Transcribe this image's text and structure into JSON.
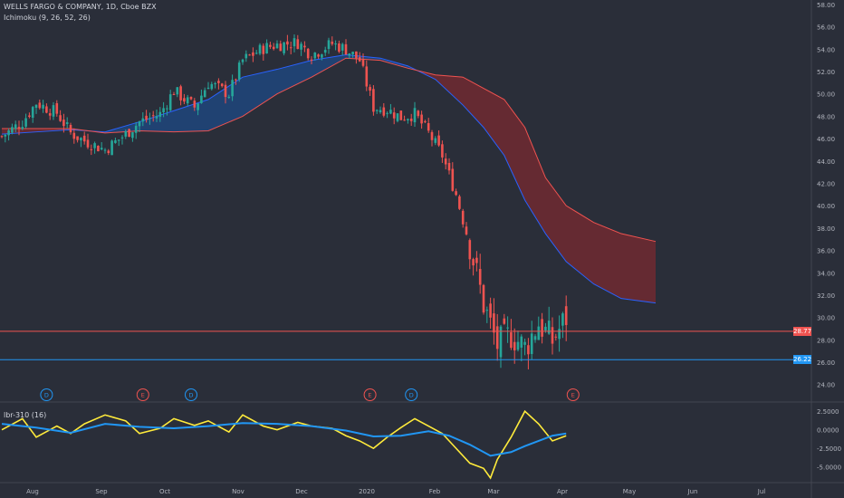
{
  "header": {
    "symbol_line": "WELLS FARGO & COMPANY, 1D, Cboe BZX",
    "indicator_line": "Ichimoku (9, 26, 52, 26)",
    "sub_indicator": "lbr-310 (16)"
  },
  "colors": {
    "background": "#2a2e39",
    "up_candle": "#26a69a",
    "down_candle": "#ef5350",
    "cloud_bull": "#1e4a86",
    "cloud_bear": "#7a2a30",
    "leading_a": "#2962ff",
    "leading_b": "#ef5350",
    "osc_fast": "#ffeb3b",
    "osc_slow": "#2196f3",
    "line_red": "#ef5350",
    "line_blue": "#2196f3"
  },
  "chart_data": [
    {
      "type": "candlestick",
      "title": "WELLS FARGO & COMPANY, 1D, Cboe BZX",
      "x_ticks": [
        "Aug",
        "Sep",
        "Oct",
        "Nov",
        "Dec",
        "2020",
        "Feb",
        "Mar",
        "Apr",
        "May",
        "Jun",
        "Jul"
      ],
      "y_ticks": [
        "58.00",
        "56.00",
        "54.00",
        "52.00",
        "50.00",
        "48.00",
        "46.00",
        "44.00",
        "42.00",
        "40.00",
        "38.00",
        "36.00",
        "34.00",
        "32.00",
        "30.00",
        "28.00",
        "26.00",
        "24.00"
      ],
      "ylim": [
        22.6,
        58.4
      ],
      "price_lines": [
        {
          "value": 28.77,
          "label": "28.77",
          "color": "#ef5350"
        },
        {
          "value": 26.22,
          "label": "26.22",
          "color": "#2196f3"
        }
      ],
      "close_path": [
        [
          0,
          46.2
        ],
        [
          6,
          47.5
        ],
        [
          10,
          49.2
        ],
        [
          16,
          48.3
        ],
        [
          20,
          46.5
        ],
        [
          24,
          45.8
        ],
        [
          30,
          45.0
        ],
        [
          36,
          46.4
        ],
        [
          40,
          47.5
        ],
        [
          46,
          48.2
        ],
        [
          50,
          50.3
        ],
        [
          56,
          48.8
        ],
        [
          60,
          51.0
        ],
        [
          66,
          50.0
        ],
        [
          70,
          53.0
        ],
        [
          76,
          54.1
        ],
        [
          80,
          54.4
        ],
        [
          86,
          54.6
        ],
        [
          90,
          53.5
        ],
        [
          96,
          54.5
        ],
        [
          100,
          54.0
        ],
        [
          104,
          53.0
        ],
        [
          108,
          48.8
        ],
        [
          112,
          48.6
        ],
        [
          116,
          47.9
        ],
        [
          120,
          48.2
        ],
        [
          124,
          46.5
        ],
        [
          128,
          44.5
        ],
        [
          132,
          41.0
        ],
        [
          136,
          36.5
        ],
        [
          140,
          31.2
        ],
        [
          144,
          27.5
        ],
        [
          148,
          28.5
        ],
        [
          152,
          27.3
        ],
        [
          156,
          29.5
        ],
        [
          160,
          27.9
        ],
        [
          164,
          30.0
        ]
      ],
      "cloud": {
        "x": [
          0,
          10,
          20,
          30,
          40,
          50,
          60,
          70,
          80,
          90,
          100,
          110,
          118,
          126,
          134,
          140,
          146,
          152,
          158,
          164,
          172,
          180,
          190
        ],
        "span_a": [
          46.4,
          46.6,
          46.8,
          46.6,
          47.5,
          48.5,
          49.5,
          51.5,
          52.2,
          53.0,
          53.5,
          53.2,
          52.5,
          51.3,
          49.0,
          47.0,
          44.5,
          40.5,
          37.5,
          35.0,
          33.0,
          31.7,
          31.3
        ],
        "span_b": [
          46.9,
          46.9,
          46.9,
          46.5,
          46.7,
          46.6,
          46.7,
          48.0,
          50.0,
          51.5,
          53.2,
          53.0,
          52.3,
          51.7,
          51.5,
          50.5,
          49.5,
          47.0,
          42.5,
          40.0,
          38.5,
          37.5,
          36.8
        ]
      },
      "events": [
        {
          "x": 13,
          "kind": "D"
        },
        {
          "x": 41,
          "kind": "E"
        },
        {
          "x": 55,
          "kind": "D"
        },
        {
          "x": 107,
          "kind": "E"
        },
        {
          "x": 119,
          "kind": "D"
        },
        {
          "x": 166,
          "kind": "E"
        }
      ]
    },
    {
      "type": "line",
      "title": "lbr-310 (16)",
      "y_ticks": [
        "2.5000",
        "0.0000",
        "-2.5000",
        "-5.0000"
      ],
      "y_tick_values": [
        2.5,
        0,
        -2.5,
        -5
      ],
      "ylim": [
        -7,
        3.5
      ],
      "series": [
        {
          "color": "#ffeb3b",
          "values": [
            [
              0,
              0.0
            ],
            [
              6,
              1.5
            ],
            [
              10,
              -1.0
            ],
            [
              16,
              0.5
            ],
            [
              20,
              -0.5
            ],
            [
              24,
              0.8
            ],
            [
              30,
              2.0
            ],
            [
              36,
              1.2
            ],
            [
              40,
              -0.5
            ],
            [
              46,
              0.2
            ],
            [
              50,
              1.5
            ],
            [
              56,
              0.6
            ],
            [
              60,
              1.2
            ],
            [
              66,
              -0.3
            ],
            [
              70,
              2.0
            ],
            [
              76,
              0.5
            ],
            [
              80,
              0.0
            ],
            [
              86,
              1.0
            ],
            [
              90,
              0.5
            ],
            [
              96,
              0.2
            ],
            [
              100,
              -0.8
            ],
            [
              104,
              -1.5
            ],
            [
              108,
              -2.5
            ],
            [
              112,
              -1.0
            ],
            [
              116,
              0.3
            ],
            [
              120,
              1.5
            ],
            [
              124,
              0.5
            ],
            [
              128,
              -0.5
            ],
            [
              132,
              -2.5
            ],
            [
              136,
              -4.5
            ],
            [
              140,
              -5.2
            ],
            [
              142,
              -6.5
            ],
            [
              144,
              -4.0
            ],
            [
              148,
              -1.0
            ],
            [
              152,
              2.5
            ],
            [
              156,
              0.8
            ],
            [
              160,
              -1.5
            ],
            [
              164,
              -0.8
            ]
          ]
        },
        {
          "color": "#2196f3",
          "values": [
            [
              0,
              0.8
            ],
            [
              10,
              0.3
            ],
            [
              20,
              -0.4
            ],
            [
              30,
              0.8
            ],
            [
              40,
              0.4
            ],
            [
              50,
              0.2
            ],
            [
              60,
              0.5
            ],
            [
              70,
              0.9
            ],
            [
              80,
              0.8
            ],
            [
              90,
              0.5
            ],
            [
              100,
              -0.1
            ],
            [
              108,
              -0.9
            ],
            [
              116,
              -0.8
            ],
            [
              124,
              -0.2
            ],
            [
              130,
              -0.8
            ],
            [
              136,
              -2.0
            ],
            [
              142,
              -3.5
            ],
            [
              148,
              -3.0
            ],
            [
              152,
              -2.2
            ],
            [
              156,
              -1.5
            ],
            [
              160,
              -0.8
            ],
            [
              164,
              -0.5
            ]
          ]
        }
      ]
    }
  ]
}
